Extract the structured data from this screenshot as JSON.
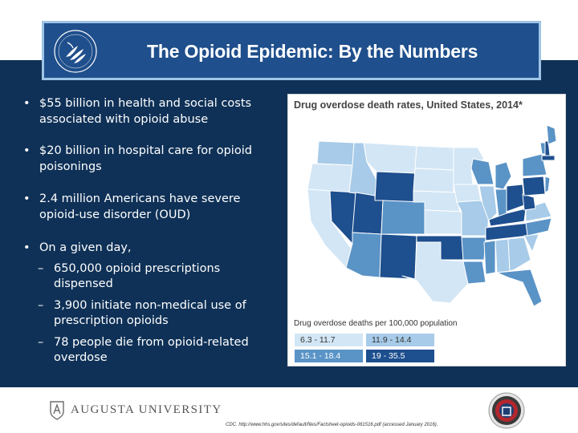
{
  "title": "The Opioid Epidemic: By the Numbers",
  "bullets": [
    {
      "line1": "$55 billion in health and social costs",
      "line2": "associated with opioid abuse"
    },
    {
      "line1": "$20 billion in hospital care for opioid",
      "line2": "poisonings"
    },
    {
      "line1": "2.4 million Americans have severe",
      "line2": "opioid-use disorder (OUD)"
    },
    {
      "line1": "On a given day,",
      "subs": [
        {
          "line1": "650,000 opioid prescriptions",
          "line2": "dispensed"
        },
        {
          "line1": "3,900 initiate non-medical use of",
          "line2": "prescription opioids"
        },
        {
          "line1": "78 people die from opioid-related",
          "line2": "overdose"
        }
      ]
    }
  ],
  "map": {
    "title": "Drug overdose death rates, United States, 2014*",
    "legend_title": "Drug overdose deaths per 100,000 population",
    "legend": [
      {
        "label": "6.3 - 11.7",
        "color": "#d3e6f5",
        "text_color": "#333333"
      },
      {
        "label": "11.9 - 14.4",
        "color": "#a7cbe8",
        "text_color": "#333333"
      },
      {
        "label": "15.1 - 18.4",
        "color": "#5a93c6",
        "text_color": "#ffffff"
      },
      {
        "label": "19 - 35.5",
        "color": "#1e4f8e",
        "text_color": "#ffffff"
      }
    ]
  },
  "footer": {
    "institution": "AUGUSTA UNIVERSITY",
    "citation": "CDC. http://www.hhs.gov/sites/default/files/Factsheet-opioids-061516.pdf (accessed January 2016)."
  },
  "colors": {
    "navy": "#0f3157",
    "banner": "#1f4f8c",
    "banner_border": "#9ec4e6"
  },
  "icons": {
    "logo": "hhs-eagle-icon",
    "footer": "university-shield-icon",
    "badge": "circular-seal-icon"
  }
}
